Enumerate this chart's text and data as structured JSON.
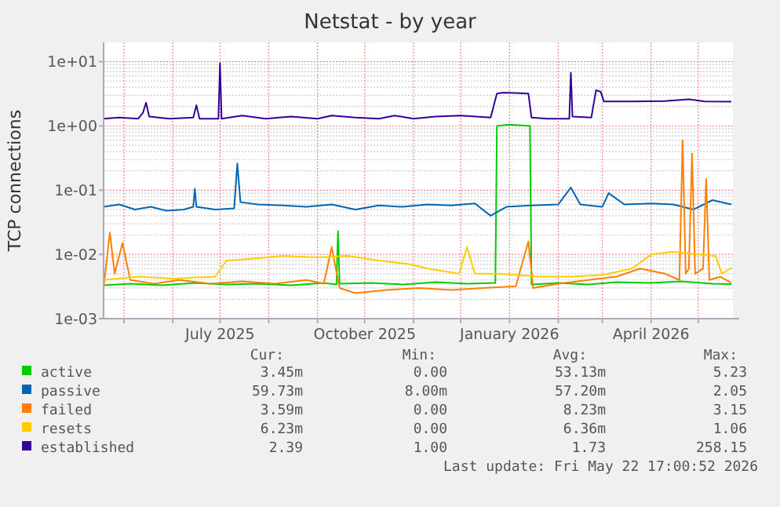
{
  "chart_data": {
    "type": "line",
    "title": "Netstat - by year",
    "ylabel": "TCP connections",
    "log": "y",
    "grid": true,
    "legend": "bottom",
    "marker": "none",
    "line_style": "solid",
    "xlim": [
      "2025-04-18",
      "2026-05-23"
    ],
    "xticks": [
      {
        "value": "2025-05-01",
        "label": null
      },
      {
        "value": "2025-06-01",
        "label": null
      },
      {
        "value": "2025-07-01",
        "label": "July 2025"
      },
      {
        "value": "2025-08-01",
        "label": null
      },
      {
        "value": "2025-09-01",
        "label": null
      },
      {
        "value": "2025-10-01",
        "label": "October 2025"
      },
      {
        "value": "2025-11-01",
        "label": null
      },
      {
        "value": "2025-12-01",
        "label": null
      },
      {
        "value": "2026-01-01",
        "label": "January 2026"
      },
      {
        "value": "2026-02-01",
        "label": null
      },
      {
        "value": "2026-03-01",
        "label": null
      },
      {
        "value": "2026-04-01",
        "label": "April 2026"
      },
      {
        "value": "2026-05-01",
        "label": null
      }
    ],
    "ylim": [
      0.001,
      20
    ],
    "yticks": [
      {
        "value": 0.001,
        "label": "1e-03"
      },
      {
        "value": 0.01,
        "label": "1e-02"
      },
      {
        "value": 0.1,
        "label": "1e-01"
      },
      {
        "value": 1,
        "label": "1e+00"
      },
      {
        "value": 10,
        "label": "1e+01"
      }
    ],
    "series": [
      {
        "name": "active",
        "color": "#00cc00",
        "x": [
          "2025-04-18",
          "2025-05-05",
          "2025-05-25",
          "2025-06-15",
          "2025-07-05",
          "2025-07-25",
          "2025-08-15",
          "2025-09-05",
          "2025-09-13",
          "2025-09-14",
          "2025-09-15",
          "2025-10-05",
          "2025-10-25",
          "2025-11-15",
          "2025-12-05",
          "2025-12-23",
          "2025-12-24",
          "2026-01-01",
          "2026-01-14",
          "2026-01-15",
          "2026-02-01",
          "2026-02-20",
          "2026-03-10",
          "2026-04-01",
          "2026-04-20",
          "2026-05-10",
          "2026-05-22"
        ],
        "values": [
          0.0033,
          0.0035,
          0.0033,
          0.0036,
          0.0034,
          0.0035,
          0.0033,
          0.0036,
          0.0034,
          0.023,
          0.0035,
          0.0036,
          0.0034,
          0.0037,
          0.0035,
          0.0036,
          1.0,
          1.05,
          1.0,
          0.0034,
          0.0036,
          0.0034,
          0.0037,
          0.0036,
          0.0038,
          0.0035,
          0.00345
        ]
      },
      {
        "name": "passive",
        "color": "#0066b3",
        "x": [
          "2025-04-18",
          "2025-04-28",
          "2025-05-08",
          "2025-05-18",
          "2025-05-28",
          "2025-06-08",
          "2025-06-14",
          "2025-06-15",
          "2025-06-16",
          "2025-06-28",
          "2025-07-10",
          "2025-07-12",
          "2025-07-14",
          "2025-07-25",
          "2025-08-10",
          "2025-08-25",
          "2025-09-10",
          "2025-09-25",
          "2025-10-10",
          "2025-10-25",
          "2025-11-10",
          "2025-11-25",
          "2025-12-10",
          "2025-12-20",
          "2025-12-30",
          "2026-01-15",
          "2026-02-01",
          "2026-02-09",
          "2026-02-15",
          "2026-03-01",
          "2026-03-05",
          "2026-03-15",
          "2026-04-01",
          "2026-04-15",
          "2026-04-28",
          "2026-05-10",
          "2026-05-22"
        ],
        "values": [
          0.055,
          0.06,
          0.05,
          0.055,
          0.048,
          0.05,
          0.055,
          0.105,
          0.055,
          0.05,
          0.052,
          0.26,
          0.065,
          0.06,
          0.058,
          0.055,
          0.06,
          0.05,
          0.058,
          0.055,
          0.06,
          0.058,
          0.062,
          0.04,
          0.055,
          0.058,
          0.06,
          0.11,
          0.06,
          0.055,
          0.09,
          0.06,
          0.062,
          0.06,
          0.05,
          0.07,
          0.06
        ]
      },
      {
        "name": "failed",
        "color": "#ff8000",
        "x": [
          "2025-04-18",
          "2025-04-22",
          "2025-04-25",
          "2025-04-30",
          "2025-05-05",
          "2025-05-20",
          "2025-06-05",
          "2025-06-25",
          "2025-07-15",
          "2025-08-05",
          "2025-08-25",
          "2025-09-05",
          "2025-09-10",
          "2025-09-15",
          "2025-09-25",
          "2025-10-15",
          "2025-11-05",
          "2025-11-25",
          "2025-12-15",
          "2026-01-05",
          "2026-01-13",
          "2026-01-16",
          "2026-02-01",
          "2026-02-20",
          "2026-03-10",
          "2026-03-25",
          "2026-04-10",
          "2026-04-19",
          "2026-04-21",
          "2026-04-23",
          "2026-04-25",
          "2026-04-27",
          "2026-04-29",
          "2026-05-04",
          "2026-05-06",
          "2026-05-08",
          "2026-05-15",
          "2026-05-22"
        ],
        "values": [
          0.003,
          0.022,
          0.005,
          0.015,
          0.004,
          0.0035,
          0.004,
          0.0035,
          0.0038,
          0.0035,
          0.004,
          0.0035,
          0.013,
          0.003,
          0.0025,
          0.0028,
          0.003,
          0.0028,
          0.003,
          0.0032,
          0.016,
          0.003,
          0.0035,
          0.004,
          0.0045,
          0.006,
          0.005,
          0.004,
          0.6,
          0.005,
          0.006,
          0.37,
          0.005,
          0.006,
          0.15,
          0.004,
          0.0045,
          0.0036
        ]
      },
      {
        "name": "resets",
        "color": "#ffcc00",
        "x": [
          "2025-04-18",
          "2025-05-10",
          "2025-06-01",
          "2025-06-28",
          "2025-07-05",
          "2025-07-20",
          "2025-08-10",
          "2025-09-01",
          "2025-09-20",
          "2025-10-10",
          "2025-10-30",
          "2025-11-10",
          "2025-11-30",
          "2025-12-05",
          "2025-12-10",
          "2025-12-25",
          "2026-01-20",
          "2026-02-10",
          "2026-03-01",
          "2026-03-20",
          "2026-04-01",
          "2026-04-15",
          "2026-04-30",
          "2026-05-12",
          "2026-05-16",
          "2026-05-22"
        ],
        "values": [
          0.004,
          0.0045,
          0.0042,
          0.0045,
          0.008,
          0.0085,
          0.0095,
          0.009,
          0.0095,
          0.008,
          0.007,
          0.006,
          0.005,
          0.013,
          0.005,
          0.005,
          0.0045,
          0.0045,
          0.0048,
          0.006,
          0.01,
          0.011,
          0.01,
          0.0095,
          0.005,
          0.00623
        ]
      },
      {
        "name": "established",
        "color": "#330099",
        "x": [
          "2025-04-18",
          "2025-04-28",
          "2025-05-10",
          "2025-05-13",
          "2025-05-15",
          "2025-05-17",
          "2025-05-30",
          "2025-06-14",
          "2025-06-16",
          "2025-06-18",
          "2025-06-30",
          "2025-07-01",
          "2025-07-02",
          "2025-07-15",
          "2025-07-30",
          "2025-08-15",
          "2025-09-01",
          "2025-09-10",
          "2025-09-25",
          "2025-10-10",
          "2025-10-20",
          "2025-11-01",
          "2025-11-15",
          "2025-12-01",
          "2025-12-20",
          "2025-12-24",
          "2025-12-28",
          "2026-01-05",
          "2026-01-13",
          "2026-01-15",
          "2026-01-25",
          "2026-02-08",
          "2026-02-09",
          "2026-02-10",
          "2026-02-22",
          "2026-02-25",
          "2026-02-28",
          "2026-03-02",
          "2026-03-20",
          "2026-04-10",
          "2026-04-25",
          "2026-05-05",
          "2026-05-22"
        ],
        "values": [
          1.3,
          1.35,
          1.3,
          1.6,
          2.3,
          1.4,
          1.3,
          1.35,
          2.1,
          1.3,
          1.3,
          9.5,
          1.3,
          1.45,
          1.3,
          1.4,
          1.3,
          1.45,
          1.35,
          1.3,
          1.45,
          1.3,
          1.4,
          1.45,
          1.35,
          3.2,
          3.3,
          3.25,
          3.2,
          1.35,
          1.3,
          1.3,
          6.7,
          1.4,
          1.35,
          3.6,
          3.4,
          2.4,
          2.4,
          2.45,
          2.6,
          2.4,
          2.39
        ]
      }
    ],
    "annotations": [
      "Cur:",
      "Min:",
      "Avg:",
      "Max:",
      "3.45m",
      "0.00",
      "53.13m",
      "5.23",
      "59.73m",
      "8.00m",
      "57.20m",
      "2.05",
      "3.59m",
      "0.00",
      "8.23m",
      "3.15",
      "6.23m",
      "0.00",
      "6.36m",
      "1.06",
      "2.39",
      "1.00",
      "1.73",
      "258.15",
      "Last update: Fri May 22 17:00:52 2026"
    ]
  }
}
